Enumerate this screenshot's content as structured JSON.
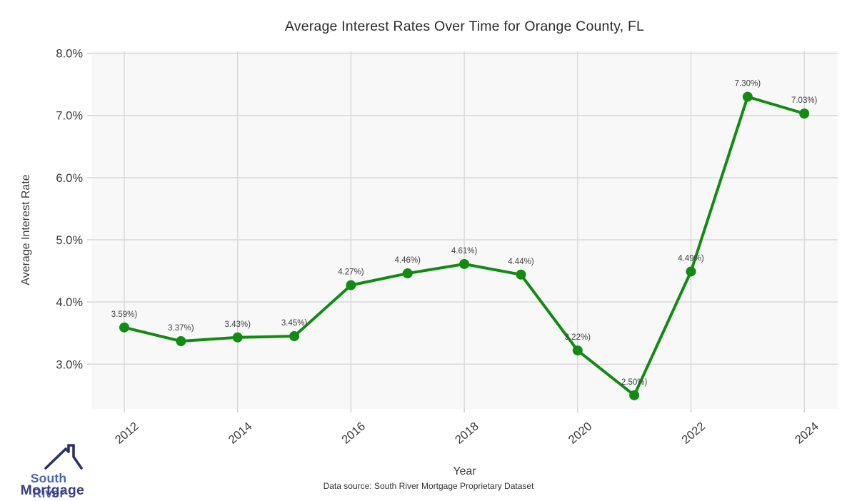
{
  "chart_data": {
    "type": "line",
    "title": "Average Interest Rates Over Time for Orange County, FL",
    "xlabel": "Year",
    "ylabel": "Average Interest Rate",
    "x": [
      2012,
      2013,
      2014,
      2015,
      2016,
      2017,
      2018,
      2019,
      2020,
      2021,
      2022,
      2023,
      2024
    ],
    "values": [
      3.59,
      3.37,
      3.43,
      3.45,
      4.27,
      4.46,
      4.61,
      4.44,
      3.22,
      2.5,
      4.49,
      7.3,
      7.03
    ],
    "point_labels": [
      "3.59%)",
      "3.37%)",
      "3.43%)",
      "3.45%)",
      "4.27%)",
      "4.46%)",
      "4.61%)",
      "4.44%)",
      "3.22%)",
      "2.50%)",
      "4.49%)",
      "7.30%)",
      "7.03%)"
    ],
    "x_ticks": [
      2012,
      2014,
      2016,
      2018,
      2020,
      2022,
      2024
    ],
    "x_tick_labels": [
      "2012",
      "2014",
      "2016",
      "2018",
      "2020",
      "2022",
      "2024"
    ],
    "y_ticks": [
      3,
      4,
      5,
      6,
      7,
      8
    ],
    "y_tick_labels": [
      "3.0%",
      "4.0%",
      "5.0%",
      "6.0%",
      "7.0%",
      "8.0%"
    ],
    "xlim": [
      2011.42,
      2024.59
    ],
    "ylim": [
      2.28,
      8.03
    ],
    "grid": true,
    "legend": "none",
    "line_color": "#128b12",
    "marker_color": "#128b12",
    "plot_bg": "#f8f8f8",
    "grid_color": "#d8d8d8",
    "tick_color": "#cfcfcf",
    "label_color": "#3f3f3f",
    "tick_label_color": "#3a3a3a"
  },
  "footer": {
    "data_source": "Data source: South River Mortgage Proprietary Dataset"
  },
  "logo": {
    "line1": "South River",
    "line2": "Mortgage",
    "line1_color": "#4a66b0",
    "line2_color": "#3a3e82",
    "roof_color": "#2c3166"
  }
}
